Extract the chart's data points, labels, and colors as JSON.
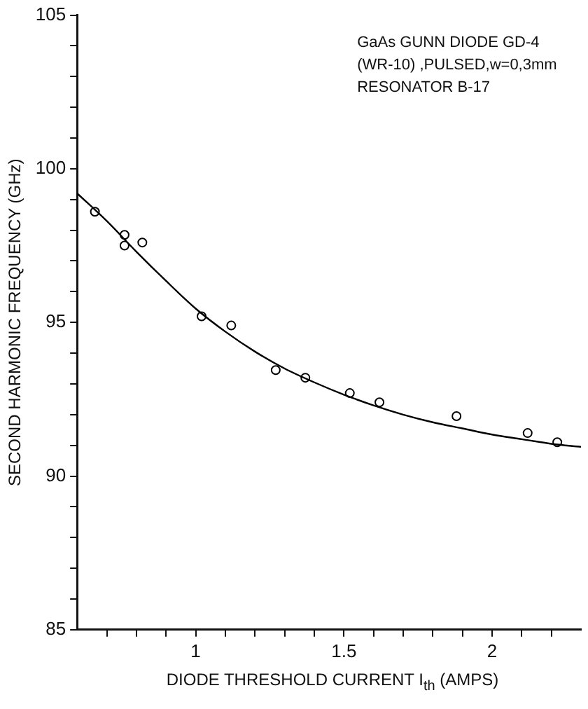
{
  "chart_data": {
    "type": "scatter",
    "xlabel": "DIODE THRESHOLD CURRENT I$_{th}$ (AMPS)",
    "ylabel": "SECOND HARMONIC FREQUENCY (GHz)",
    "annotations": [
      "GaAs GUNN DIODE GD-4",
      "(WR-10) ,PULSED,w=0,3mm",
      "RESONATOR B-17"
    ],
    "xlim": [
      0.6,
      2.3
    ],
    "xticks": [
      {
        "value": 0.7,
        "label": null
      },
      {
        "value": 0.8,
        "label": null
      },
      {
        "value": 0.9,
        "label": null
      },
      1,
      {
        "value": 1.1,
        "label": null
      },
      {
        "value": 1.2,
        "label": null
      },
      {
        "value": 1.3,
        "label": null
      },
      {
        "value": 1.4,
        "label": null
      },
      {
        "value": 1.5,
        "label": "1.5"
      },
      {
        "value": 1.6,
        "label": null
      },
      {
        "value": 1.7,
        "label": null
      },
      {
        "value": 1.8,
        "label": null
      },
      {
        "value": 1.9,
        "label": null
      },
      2,
      {
        "value": 2.1,
        "label": null
      },
      {
        "value": 2.2,
        "label": null
      }
    ],
    "ylim": [
      85,
      105
    ],
    "yticks": [
      85,
      {
        "value": 86,
        "label": null
      },
      {
        "value": 87,
        "label": null
      },
      {
        "value": 88,
        "label": null
      },
      {
        "value": 89,
        "label": null
      },
      90,
      {
        "value": 91,
        "label": null
      },
      {
        "value": 92,
        "label": null
      },
      {
        "value": 93,
        "label": null
      },
      {
        "value": 94,
        "label": null
      },
      95,
      {
        "value": 96,
        "label": null
      },
      {
        "value": 97,
        "label": null
      },
      {
        "value": 98,
        "label": null
      },
      {
        "value": 99,
        "label": null
      },
      100,
      {
        "value": 101,
        "label": null
      },
      {
        "value": 102,
        "label": null
      },
      {
        "value": 103,
        "label": null
      },
      {
        "value": 104,
        "label": null
      },
      105
    ],
    "grid": false,
    "legend": false,
    "marker": "circle",
    "series": [
      {
        "type": "scatter",
        "color": "#000000",
        "x": [
          0.66,
          0.76,
          0.76,
          0.82,
          1.02,
          1.12,
          1.27,
          1.37,
          1.52,
          1.62,
          1.88,
          2.12,
          2.22
        ],
        "values": [
          98.6,
          97.85,
          97.5,
          97.6,
          95.2,
          94.9,
          93.45,
          93.2,
          92.7,
          92.4,
          91.95,
          91.4,
          91.1
        ]
      },
      {
        "type": "line",
        "color": "#000000",
        "marker": "none",
        "line_style": "solid",
        "x": [
          0.6,
          0.7,
          0.8,
          0.9,
          1.0,
          1.1,
          1.2,
          1.3,
          1.4,
          1.5,
          1.6,
          1.7,
          1.8,
          1.9,
          2.0,
          2.1,
          2.2,
          2.3
        ],
        "values": [
          99.2,
          98.3,
          97.3,
          96.35,
          95.45,
          94.7,
          94.05,
          93.5,
          93.05,
          92.65,
          92.3,
          92.0,
          91.75,
          91.55,
          91.35,
          91.2,
          91.05,
          90.95
        ]
      }
    ]
  }
}
